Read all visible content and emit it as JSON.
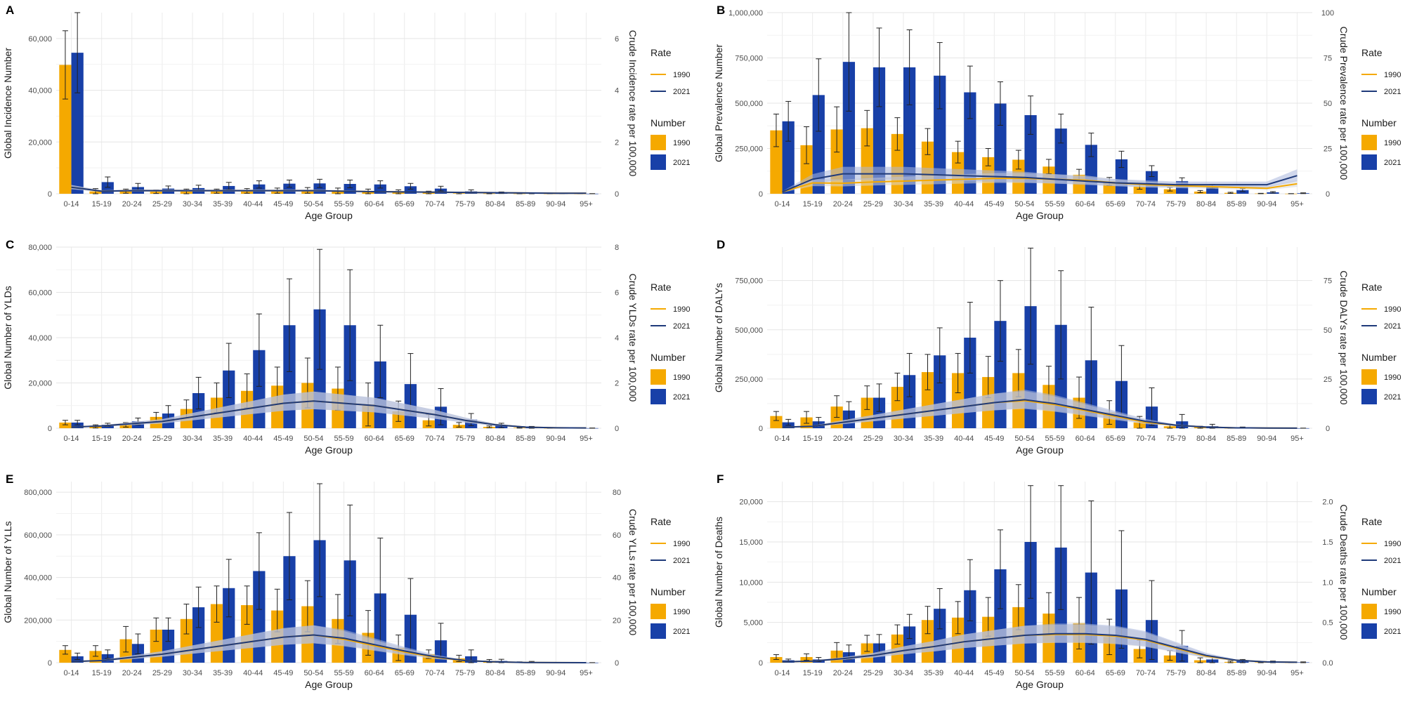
{
  "figure": {
    "age_groups": [
      "0-14",
      "15-19",
      "20-24",
      "25-29",
      "30-34",
      "35-39",
      "40-44",
      "45-49",
      "50-54",
      "55-59",
      "60-64",
      "65-69",
      "70-74",
      "75-79",
      "80-84",
      "85-89",
      "90-94",
      "95+"
    ],
    "colors": {
      "bar_1990": "#F5A900",
      "bar_2021": "#1840A8",
      "line_1990": "#F5A900",
      "line_2021": "#1F3A7A",
      "ribbon_1990": "#D7D7D7",
      "ribbon_2021": "#A9B6DC"
    }
  },
  "chart_data": [
    {
      "type": "bar",
      "panel": "A",
      "xlabel": "Age Group",
      "ylabel": "Global Incidence Number",
      "y2label": "Crude Incidence rate per 100,000",
      "ylim": [
        0,
        70000
      ],
      "yticks": [
        0,
        20000,
        40000,
        60000
      ],
      "yticklabels": [
        "0",
        "20,000",
        "40,000",
        "60,000"
      ],
      "y2lim": [
        0,
        7
      ],
      "y2ticks": [
        0,
        2,
        4,
        6
      ],
      "y2ticklabels": [
        "0",
        "2",
        "4",
        "6"
      ],
      "legend": {
        "rate_title": "Rate",
        "number_title": "Number",
        "labels": [
          "1990",
          "2021"
        ]
      },
      "series": [
        {
          "name": "1990",
          "values": [
            49800,
            900,
            1000,
            800,
            900,
            1000,
            1100,
            1200,
            1300,
            1100,
            800,
            600,
            400,
            200,
            100,
            50,
            20,
            10
          ],
          "err_high": [
            63000,
            2000,
            1800,
            1500,
            1800,
            1800,
            2000,
            2200,
            2400,
            2200,
            1800,
            1500,
            1000,
            600,
            300,
            150,
            60,
            30
          ]
        },
        {
          "name": "2021",
          "values": [
            54500,
            4500,
            2600,
            2000,
            2200,
            3000,
            3600,
            3900,
            4000,
            3800,
            3600,
            2900,
            2000,
            900,
            400,
            200,
            80,
            30
          ],
          "err_high": [
            70000,
            6500,
            4000,
            3000,
            3300,
            4400,
            5000,
            5300,
            5600,
            5300,
            5000,
            4000,
            2900,
            1500,
            700,
            400,
            150,
            60
          ]
        }
      ],
      "rates": [
        {
          "name": "1990",
          "values": [
            0.25,
            0.1,
            0.12,
            0.12,
            0.12,
            0.12,
            0.12,
            0.12,
            0.12,
            0.1,
            0.08,
            0.07,
            0.06,
            0.05,
            0.04,
            0.03,
            0.02,
            0.02
          ]
        },
        {
          "name": "2021",
          "values": [
            0.25,
            0.1,
            0.12,
            0.12,
            0.12,
            0.12,
            0.12,
            0.12,
            0.12,
            0.1,
            0.08,
            0.07,
            0.06,
            0.05,
            0.04,
            0.03,
            0.02,
            0.02
          ]
        }
      ]
    },
    {
      "type": "bar",
      "panel": "B",
      "xlabel": "Age Group",
      "ylabel": "Global Prevalence Number",
      "y2label": "Crude Prevalence rate per 100,000",
      "ylim": [
        0,
        1000000
      ],
      "yticks": [
        0,
        250000,
        500000,
        750000,
        1000000
      ],
      "yticklabels": [
        "0",
        "250,000",
        "500,000",
        "750,000",
        "1,000,000"
      ],
      "y2lim": [
        0,
        100
      ],
      "y2ticks": [
        0,
        25,
        50,
        75,
        100
      ],
      "y2ticklabels": [
        "0",
        "25",
        "50",
        "75",
        "100"
      ],
      "legend": {
        "rate_title": "Rate",
        "number_title": "Number",
        "labels": [
          "1990",
          "2021"
        ]
      },
      "series": [
        {
          "name": "1990",
          "values": [
            350000,
            268000,
            355000,
            362000,
            330000,
            288000,
            230000,
            202000,
            188000,
            150000,
            105000,
            68000,
            40000,
            25000,
            12000,
            5000,
            1500,
            500
          ],
          "err_high": [
            440000,
            370000,
            480000,
            460000,
            420000,
            360000,
            290000,
            250000,
            240000,
            190000,
            135000,
            90000,
            55000,
            35000,
            18000,
            8000,
            2500,
            800
          ]
        },
        {
          "name": "2021",
          "values": [
            400000,
            545000,
            728000,
            698000,
            698000,
            652000,
            560000,
            498000,
            434000,
            360000,
            270000,
            190000,
            125000,
            70000,
            40000,
            20000,
            8000,
            3000
          ],
          "err_high": [
            510000,
            745000,
            1000000,
            915000,
            905000,
            835000,
            705000,
            618000,
            540000,
            440000,
            335000,
            235000,
            155000,
            88000,
            52000,
            28000,
            12000,
            5000
          ]
        }
      ],
      "rates": [
        {
          "name": "1990",
          "values": [
            1,
            6,
            5.8,
            6.5,
            7,
            7.5,
            8,
            8.5,
            8.5,
            8,
            7.5,
            6,
            5,
            4.5,
            4,
            3.5,
            3,
            5.5
          ]
        },
        {
          "name": "2021",
          "values": [
            1,
            8,
            11,
            11,
            11,
            10.5,
            10,
            9.5,
            9,
            8,
            7,
            6,
            5.5,
            5,
            5,
            5,
            5,
            10
          ]
        }
      ]
    },
    {
      "type": "bar",
      "panel": "C",
      "xlabel": "Age Group",
      "ylabel": "Global Number of YLDs",
      "y2label": "Crude YLDs rate per 100,000",
      "ylim": [
        0,
        80000
      ],
      "yticks": [
        0,
        20000,
        40000,
        60000,
        80000
      ],
      "yticklabels": [
        "0",
        "20,000",
        "40,000",
        "60,000",
        "80,000"
      ],
      "y2lim": [
        0,
        8
      ],
      "y2ticks": [
        0,
        2,
        4,
        6,
        8
      ],
      "y2ticklabels": [
        "0",
        "2",
        "4",
        "6",
        "8"
      ],
      "legend": {
        "rate_title": "Rate",
        "number_title": "Number",
        "labels": [
          "1990",
          "2021"
        ]
      },
      "series": [
        {
          "name": "1990",
          "values": [
            2500,
            800,
            1500,
            5000,
            8500,
            13500,
            16500,
            18800,
            20000,
            17500,
            10500,
            7500,
            3500,
            1500,
            600,
            200,
            80,
            30
          ],
          "err_high": [
            3500,
            1500,
            2500,
            7000,
            12500,
            20000,
            24000,
            27000,
            31000,
            27000,
            20000,
            12000,
            6000,
            2500,
            1000,
            350,
            150,
            50
          ]
        },
        {
          "name": "2021",
          "values": [
            2500,
            1500,
            3000,
            6500,
            15500,
            25500,
            34500,
            45500,
            52500,
            45500,
            29500,
            19500,
            9500,
            3800,
            1200,
            400,
            150,
            50
          ],
          "err_high": [
            3500,
            2200,
            4500,
            10000,
            22500,
            37500,
            50500,
            66000,
            79000,
            70000,
            45500,
            33000,
            17500,
            6500,
            2200,
            800,
            300,
            100
          ]
        }
      ],
      "rates": [
        {
          "name": "1990",
          "values": [
            0.05,
            0.1,
            0.2,
            0.3,
            0.5,
            0.7,
            0.9,
            1.1,
            1.2,
            1.1,
            1.0,
            0.8,
            0.6,
            0.35,
            0.15,
            0.05,
            0.02,
            0.01
          ]
        },
        {
          "name": "2021",
          "values": [
            0.05,
            0.1,
            0.2,
            0.3,
            0.5,
            0.7,
            0.9,
            1.1,
            1.2,
            1.1,
            1.0,
            0.8,
            0.6,
            0.35,
            0.15,
            0.05,
            0.02,
            0.01
          ]
        }
      ]
    },
    {
      "type": "bar",
      "panel": "D",
      "xlabel": "Age Group",
      "ylabel": "Global Number of DALYs",
      "y2label": "Crude DALYs rate per 100,000",
      "ylim": [
        0,
        920000
      ],
      "yticks": [
        0,
        250000,
        500000,
        750000
      ],
      "yticklabels": [
        "0",
        "250,000",
        "500,000",
        "750,000"
      ],
      "y2lim": [
        0,
        92
      ],
      "y2ticks": [
        0,
        25,
        50,
        75
      ],
      "y2ticklabels": [
        "0",
        "25",
        "50",
        "75"
      ],
      "legend": {
        "rate_title": "Rate",
        "number_title": "Number",
        "labels": [
          "1990",
          "2021"
        ]
      },
      "series": [
        {
          "name": "1990",
          "values": [
            62000,
            55000,
            110000,
            155000,
            210000,
            285000,
            280000,
            260000,
            280000,
            220000,
            155000,
            80000,
            30000,
            10000,
            5000,
            1000,
            300,
            100
          ],
          "err_high": [
            85000,
            85000,
            165000,
            215000,
            280000,
            375000,
            380000,
            365000,
            400000,
            315000,
            260000,
            140000,
            60000,
            20000,
            10000,
            2500,
            700,
            200
          ]
        },
        {
          "name": "2021",
          "values": [
            30000,
            35000,
            90000,
            155000,
            270000,
            370000,
            460000,
            545000,
            620000,
            525000,
            345000,
            240000,
            110000,
            35000,
            10000,
            3000,
            800,
            300
          ],
          "err_high": [
            45000,
            55000,
            135000,
            225000,
            380000,
            510000,
            640000,
            750000,
            915000,
            800000,
            615000,
            420000,
            205000,
            70000,
            20000,
            6000,
            1500,
            600
          ]
        }
      ],
      "rates": [
        {
          "name": "1990",
          "values": [
            0.5,
            1,
            3,
            5,
            7,
            9,
            11,
            13,
            14,
            12,
            9,
            6,
            3,
            1.5,
            0.6,
            0.2,
            0.1,
            0.05
          ]
        },
        {
          "name": "2021",
          "values": [
            0.5,
            1,
            3,
            5,
            7,
            9,
            11,
            13,
            14.5,
            12.5,
            9.5,
            6.5,
            3.5,
            1.5,
            0.6,
            0.2,
            0.1,
            0.05
          ]
        }
      ]
    },
    {
      "type": "bar",
      "panel": "E",
      "xlabel": "Age Group",
      "ylabel": "Global Number of YLLs",
      "y2label": "Crude YLLs rate per 100,000",
      "ylim": [
        0,
        850000
      ],
      "yticks": [
        0,
        200000,
        400000,
        600000,
        800000
      ],
      "yticklabels": [
        "0",
        "200,000",
        "400,000",
        "600,000",
        "800,000"
      ],
      "y2lim": [
        0,
        85
      ],
      "y2ticks": [
        0,
        20,
        40,
        60,
        80
      ],
      "y2ticklabels": [
        "0",
        "20",
        "40",
        "60",
        "80"
      ],
      "legend": {
        "rate_title": "Rate",
        "number_title": "Number",
        "labels": [
          "1990",
          "2021"
        ]
      },
      "series": [
        {
          "name": "1990",
          "values": [
            60000,
            55000,
            110000,
            155000,
            205000,
            275000,
            270000,
            245000,
            265000,
            205000,
            140000,
            70000,
            40000,
            20000,
            8000,
            2000,
            500,
            100
          ],
          "err_high": [
            80000,
            80000,
            170000,
            210000,
            275000,
            360000,
            360000,
            345000,
            385000,
            320000,
            245000,
            130000,
            60000,
            35000,
            15000,
            4000,
            1000,
            200
          ]
        },
        {
          "name": "2021",
          "values": [
            30000,
            40000,
            88000,
            155000,
            260000,
            350000,
            430000,
            500000,
            575000,
            480000,
            325000,
            225000,
            105000,
            30000,
            8000,
            3000,
            800,
            200
          ],
          "err_high": [
            45000,
            60000,
            135000,
            210000,
            355000,
            485000,
            610000,
            705000,
            840000,
            740000,
            585000,
            395000,
            185000,
            60000,
            16000,
            6000,
            1500,
            400
          ]
        }
      ],
      "rates": [
        {
          "name": "1990",
          "values": [
            0.5,
            1,
            2.5,
            4,
            6,
            8,
            10,
            12,
            13,
            11,
            8,
            5,
            2.5,
            1,
            0.4,
            0.1,
            0.05,
            0.02
          ]
        },
        {
          "name": "2021",
          "values": [
            0.5,
            1,
            2.5,
            4,
            6,
            8,
            10,
            12,
            13,
            11.5,
            8.5,
            5.5,
            2.8,
            1,
            0.4,
            0.1,
            0.05,
            0.02
          ]
        }
      ]
    },
    {
      "type": "bar",
      "panel": "F",
      "xlabel": "Age Group",
      "ylabel": "Global Number of Deaths",
      "y2label": "Crude Deaths rate per 100,000",
      "ylim": [
        0,
        22500
      ],
      "yticks": [
        0,
        5000,
        10000,
        15000,
        20000
      ],
      "yticklabels": [
        "0",
        "5,000",
        "10,000",
        "15,000",
        "20,000"
      ],
      "y2lim": [
        0,
        2.25
      ],
      "y2ticks": [
        0,
        0.5,
        1.0,
        1.5,
        2.0
      ],
      "y2ticklabels": [
        "0.0",
        "0.5",
        "1.0",
        "1.5",
        "2.0"
      ],
      "legend": {
        "rate_title": "Rate",
        "number_title": "Number",
        "labels": [
          "1990",
          "2021"
        ]
      },
      "series": [
        {
          "name": "1990",
          "values": [
            700,
            700,
            1500,
            2400,
            3500,
            5300,
            5600,
            5700,
            6900,
            6100,
            4900,
            3200,
            1700,
            900,
            300,
            100,
            50,
            20
          ],
          "err_high": [
            1000,
            1100,
            2500,
            3400,
            4700,
            7000,
            7600,
            8100,
            9700,
            8700,
            8100,
            5400,
            2800,
            1500,
            600,
            200,
            100,
            40
          ]
        },
        {
          "name": "2021",
          "values": [
            300,
            400,
            1300,
            2400,
            4500,
            6700,
            9000,
            11600,
            15000,
            14300,
            11200,
            9100,
            5300,
            2100,
            400,
            200,
            100,
            50
          ],
          "err_high": [
            450,
            650,
            2200,
            3500,
            6000,
            9200,
            12800,
            16500,
            22000,
            22000,
            20100,
            16400,
            10200,
            4000,
            800,
            400,
            200,
            100
          ]
        }
      ],
      "rates": [
        {
          "name": "1990",
          "values": [
            0.01,
            0.02,
            0.05,
            0.09,
            0.15,
            0.2,
            0.26,
            0.3,
            0.34,
            0.35,
            0.35,
            0.33,
            0.28,
            0.18,
            0.08,
            0.03,
            0.01,
            0.005
          ]
        },
        {
          "name": "2021",
          "values": [
            0.01,
            0.02,
            0.05,
            0.09,
            0.15,
            0.2,
            0.26,
            0.3,
            0.34,
            0.36,
            0.36,
            0.34,
            0.29,
            0.19,
            0.09,
            0.03,
            0.01,
            0.005
          ]
        }
      ]
    }
  ]
}
